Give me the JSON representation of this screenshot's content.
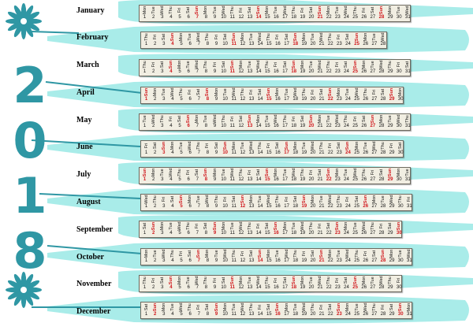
{
  "year_digits": [
    "2",
    "0",
    "1",
    "8"
  ],
  "colors": {
    "accent": "#2f97a4",
    "swoosh": "#a9ece9",
    "sunday": "#d0161b",
    "strip": "#f1eee2"
  },
  "decorations": [
    "flower-icon",
    "flower-icon"
  ],
  "months": [
    {
      "name": "January",
      "first_weekday": "Mon",
      "days": 31
    },
    {
      "name": "February",
      "first_weekday": "Thu",
      "days": 28
    },
    {
      "name": "March",
      "first_weekday": "Thu",
      "days": 31
    },
    {
      "name": "April",
      "first_weekday": "Sun",
      "days": 30
    },
    {
      "name": "May",
      "first_weekday": "Tue",
      "days": 31
    },
    {
      "name": "June",
      "first_weekday": "Fri",
      "days": 30
    },
    {
      "name": "July",
      "first_weekday": "Sun",
      "days": 31
    },
    {
      "name": "August",
      "first_weekday": "Wed",
      "days": 31
    },
    {
      "name": "September",
      "first_weekday": "Sat",
      "days": 30
    },
    {
      "name": "October",
      "first_weekday": "Mon",
      "days": 31
    },
    {
      "name": "November",
      "first_weekday": "Thu",
      "days": 30
    },
    {
      "name": "December",
      "first_weekday": "Sat",
      "days": 31
    }
  ],
  "weekday_names": [
    "Sun",
    "Mon",
    "Tue",
    "Wed",
    "Thu",
    "Fri",
    "Sat"
  ]
}
